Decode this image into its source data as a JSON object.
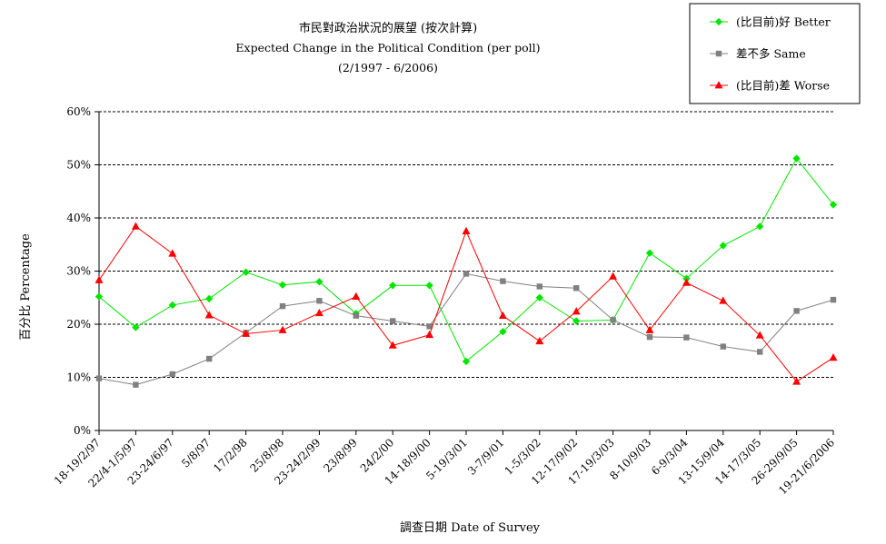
{
  "chart_data": {
    "type": "line",
    "title": "市民對政治狀況的展望 (按次計算)",
    "subtitle": "Expected Change in the Political Condition (per poll)",
    "period": "(2/1997 - 6/2006)",
    "xlabel": "調查日期 Date of Survey",
    "ylabel": "百分比 Percentage",
    "ylim": [
      0,
      60
    ],
    "yticks": [
      "0%",
      "10%",
      "20%",
      "30%",
      "40%",
      "50%",
      "60%"
    ],
    "grid": true,
    "legend_position": "top-right",
    "categories": [
      "18-19/2/97",
      "22/4-1/5/97",
      "23-24/6/97",
      "5/8/97",
      "17/2/98",
      "25/8/98",
      "23-24/2/99",
      "23/8/99",
      "24/2/00",
      "14-18/9/00",
      "5-19/3/01",
      "3-7/9/01",
      "1-5/3/02",
      "12-17/9/02",
      "17-19/3/03",
      "8-10/9/03",
      "6-9/3/04",
      "13-15/9/04",
      "14-17/3/05",
      "26-29/9/05",
      "19-21/6/2006"
    ],
    "series": [
      {
        "name": "(比目前)好 Better",
        "color": "#00e600",
        "marker": "diamond",
        "values": [
          25.2,
          19.4,
          23.6,
          24.8,
          29.8,
          27.4,
          28.0,
          22.0,
          27.3,
          27.3,
          13.0,
          18.6,
          25.0,
          20.6,
          20.8,
          33.4,
          28.6,
          34.8,
          38.4,
          51.2,
          42.5
        ]
      },
      {
        "name": "差不多 Same",
        "color": "#808080",
        "marker": "square",
        "values": [
          9.8,
          8.6,
          10.6,
          13.5,
          18.4,
          23.4,
          24.4,
          21.6,
          20.6,
          19.6,
          29.5,
          28.1,
          27.1,
          26.8,
          20.8,
          17.6,
          17.5,
          15.8,
          14.8,
          22.5,
          24.6
        ]
      },
      {
        "name": "(比目前)差 Worse",
        "color": "#ff0000",
        "marker": "triangle",
        "values": [
          28.3,
          38.4,
          33.3,
          21.7,
          18.2,
          18.9,
          22.1,
          25.2,
          16.0,
          18.0,
          37.5,
          21.6,
          16.8,
          22.4,
          29.0,
          18.9,
          27.8,
          24.4,
          17.9,
          9.2,
          13.7
        ]
      }
    ]
  }
}
